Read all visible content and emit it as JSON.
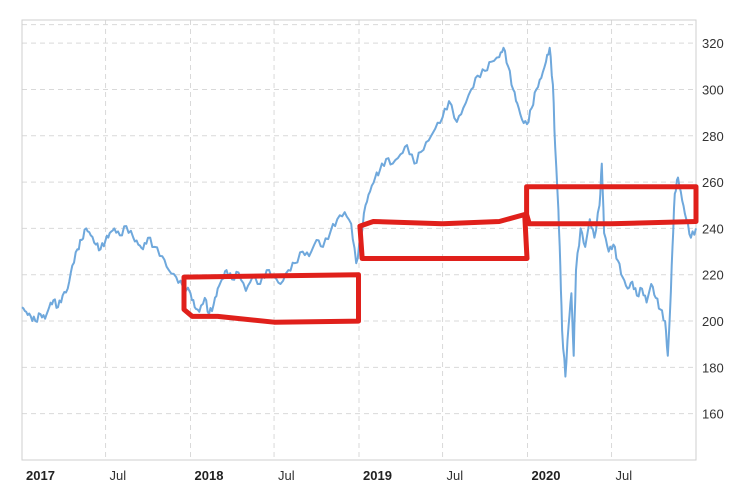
{
  "chart_data": {
    "type": "line",
    "title": "",
    "xlabel": "",
    "ylabel": "",
    "ylim": [
      140,
      330
    ],
    "y_ticks": [
      160,
      180,
      200,
      220,
      240,
      260,
      280,
      300,
      320
    ],
    "x_range": [
      "2017-01-01",
      "2020-12-31"
    ],
    "x_ticks": [
      {
        "label": "2017",
        "date": "2017-01-01",
        "major": true
      },
      {
        "label": "Jul",
        "date": "2017-07-01",
        "major": false
      },
      {
        "label": "2018",
        "date": "2018-01-01",
        "major": true
      },
      {
        "label": "Jul",
        "date": "2018-07-01",
        "major": false
      },
      {
        "label": "2019",
        "date": "2019-01-01",
        "major": true
      },
      {
        "label": "Jul",
        "date": "2019-07-01",
        "major": false
      },
      {
        "label": "2020",
        "date": "2020-01-01",
        "major": true
      },
      {
        "label": "Jul",
        "date": "2020-07-01",
        "major": false
      }
    ],
    "grid": true,
    "legend": "none",
    "line_color": "#6fa8dc",
    "annotation_color": "#e0201b",
    "series": [
      {
        "points": [
          [
            "2017-01-01",
            206
          ],
          [
            "2017-01-10",
            204
          ],
          [
            "2017-01-20",
            202
          ],
          [
            "2017-01-30",
            200
          ],
          [
            "2017-02-10",
            203
          ],
          [
            "2017-02-20",
            201
          ],
          [
            "2017-03-01",
            206
          ],
          [
            "2017-03-10",
            209
          ],
          [
            "2017-03-20",
            206
          ],
          [
            "2017-03-30",
            211
          ],
          [
            "2017-04-10",
            214
          ],
          [
            "2017-04-20",
            224
          ],
          [
            "2017-05-01",
            231
          ],
          [
            "2017-05-10",
            235
          ],
          [
            "2017-05-20",
            240
          ],
          [
            "2017-05-30",
            237
          ],
          [
            "2017-06-10",
            233
          ],
          [
            "2017-06-20",
            231
          ],
          [
            "2017-07-01",
            235
          ],
          [
            "2017-07-10",
            238
          ],
          [
            "2017-07-20",
            240
          ],
          [
            "2017-08-01",
            237
          ],
          [
            "2017-08-15",
            241
          ],
          [
            "2017-08-30",
            236
          ],
          [
            "2017-09-10",
            233
          ],
          [
            "2017-09-20",
            231
          ],
          [
            "2017-10-01",
            236
          ],
          [
            "2017-10-15",
            232
          ],
          [
            "2017-11-01",
            228
          ],
          [
            "2017-11-15",
            222
          ],
          [
            "2017-12-01",
            219
          ],
          [
            "2017-12-15",
            215
          ],
          [
            "2018-01-01",
            212
          ],
          [
            "2018-01-10",
            206
          ],
          [
            "2018-01-20",
            204
          ],
          [
            "2018-02-01",
            210
          ],
          [
            "2018-02-10",
            203
          ],
          [
            "2018-02-20",
            207
          ],
          [
            "2018-03-01",
            214
          ],
          [
            "2018-03-10",
            218
          ],
          [
            "2018-03-20",
            222
          ],
          [
            "2018-04-01",
            218
          ],
          [
            "2018-04-15",
            221
          ],
          [
            "2018-05-01",
            213
          ],
          [
            "2018-05-15",
            219
          ],
          [
            "2018-06-01",
            216
          ],
          [
            "2018-06-15",
            222
          ],
          [
            "2018-07-01",
            219
          ],
          [
            "2018-07-15",
            216
          ],
          [
            "2018-08-01",
            222
          ],
          [
            "2018-08-15",
            225
          ],
          [
            "2018-09-01",
            230
          ],
          [
            "2018-09-15",
            228
          ],
          [
            "2018-10-01",
            235
          ],
          [
            "2018-10-15",
            232
          ],
          [
            "2018-11-01",
            239
          ],
          [
            "2018-11-15",
            244
          ],
          [
            "2018-12-01",
            247
          ],
          [
            "2018-12-15",
            242
          ],
          [
            "2018-12-26",
            225
          ],
          [
            "2019-01-05",
            236
          ],
          [
            "2019-01-15",
            250
          ],
          [
            "2019-01-25",
            256
          ],
          [
            "2019-02-05",
            262
          ],
          [
            "2019-02-15",
            265
          ],
          [
            "2019-03-01",
            270
          ],
          [
            "2019-03-15",
            268
          ],
          [
            "2019-04-01",
            272
          ],
          [
            "2019-04-15",
            276
          ],
          [
            "2019-05-01",
            268
          ],
          [
            "2019-05-15",
            273
          ],
          [
            "2019-06-01",
            278
          ],
          [
            "2019-06-15",
            283
          ],
          [
            "2019-07-01",
            288
          ],
          [
            "2019-07-15",
            295
          ],
          [
            "2019-08-01",
            286
          ],
          [
            "2019-08-15",
            292
          ],
          [
            "2019-09-01",
            300
          ],
          [
            "2019-09-15",
            306
          ],
          [
            "2019-10-01",
            308
          ],
          [
            "2019-10-15",
            312
          ],
          [
            "2019-11-01",
            314
          ],
          [
            "2019-11-10",
            318
          ],
          [
            "2019-11-20",
            310
          ],
          [
            "2019-12-01",
            300
          ],
          [
            "2019-12-10",
            294
          ],
          [
            "2019-12-20",
            287
          ],
          [
            "2019-12-31",
            285
          ],
          [
            "2020-01-10",
            292
          ],
          [
            "2020-01-20",
            300
          ],
          [
            "2020-01-31",
            305
          ],
          [
            "2020-02-10",
            312
          ],
          [
            "2020-02-18",
            318
          ],
          [
            "2020-02-25",
            302
          ],
          [
            "2020-03-01",
            275
          ],
          [
            "2020-03-08",
            248
          ],
          [
            "2020-03-12",
            224
          ],
          [
            "2020-03-16",
            196
          ],
          [
            "2020-03-23",
            176
          ],
          [
            "2020-03-30",
            198
          ],
          [
            "2020-04-05",
            212
          ],
          [
            "2020-04-10",
            185
          ],
          [
            "2020-04-15",
            222
          ],
          [
            "2020-04-25",
            240
          ],
          [
            "2020-05-05",
            232
          ],
          [
            "2020-05-15",
            244
          ],
          [
            "2020-05-25",
            236
          ],
          [
            "2020-06-05",
            250
          ],
          [
            "2020-06-10",
            268
          ],
          [
            "2020-06-15",
            238
          ],
          [
            "2020-06-25",
            230
          ],
          [
            "2020-07-05",
            233
          ],
          [
            "2020-07-15",
            226
          ],
          [
            "2020-07-25",
            219
          ],
          [
            "2020-08-05",
            214
          ],
          [
            "2020-08-15",
            217
          ],
          [
            "2020-08-25",
            211
          ],
          [
            "2020-09-05",
            214
          ],
          [
            "2020-09-15",
            208
          ],
          [
            "2020-09-25",
            216
          ],
          [
            "2020-10-05",
            210
          ],
          [
            "2020-10-15",
            205
          ],
          [
            "2020-10-25",
            200
          ],
          [
            "2020-10-31",
            185
          ],
          [
            "2020-11-05",
            205
          ],
          [
            "2020-11-10",
            232
          ],
          [
            "2020-11-15",
            255
          ],
          [
            "2020-11-22",
            262
          ],
          [
            "2020-12-01",
            252
          ],
          [
            "2020-12-10",
            244
          ],
          [
            "2020-12-20",
            236
          ],
          [
            "2020-12-31",
            240
          ]
        ]
      }
    ],
    "annotations": [
      {
        "shape": "outline",
        "points": [
          [
            "2017-12-18",
            219
          ],
          [
            "2018-12-31",
            220
          ],
          [
            "2018-12-31",
            200
          ],
          [
            "2018-07-01",
            199.5
          ],
          [
            "2018-03-01",
            202
          ],
          [
            "2018-01-05",
            202
          ],
          [
            "2017-12-18",
            205
          ],
          [
            "2017-12-18",
            219
          ]
        ]
      },
      {
        "shape": "outline",
        "points": [
          [
            "2019-01-03",
            241
          ],
          [
            "2019-02-01",
            243
          ],
          [
            "2019-07-01",
            242
          ],
          [
            "2019-11-01",
            243
          ],
          [
            "2019-12-26",
            246
          ],
          [
            "2019-12-31",
            227
          ],
          [
            "2019-08-01",
            227
          ],
          [
            "2019-01-08",
            227
          ],
          [
            "2019-01-03",
            241
          ]
        ]
      },
      {
        "shape": "outline",
        "points": [
          [
            "2019-12-30",
            258
          ],
          [
            "2020-12-31",
            258
          ],
          [
            "2020-12-31",
            243
          ],
          [
            "2020-07-01",
            242
          ],
          [
            "2020-01-05",
            242
          ],
          [
            "2019-12-30",
            246
          ],
          [
            "2019-12-30",
            258
          ]
        ]
      }
    ]
  }
}
